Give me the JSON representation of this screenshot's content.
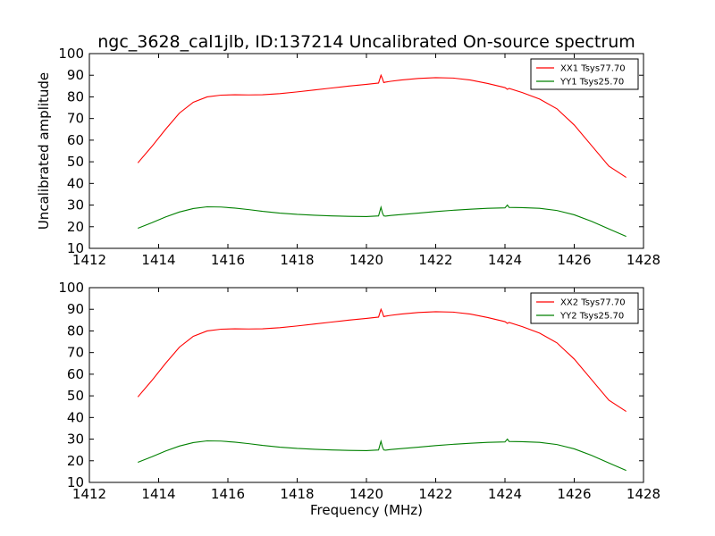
{
  "figure": {
    "title": "ngc_3628_cal1jlb, ID:137214 Uncalibrated On-source spectrum",
    "xlabel": "Frequency (MHz)",
    "ylabel": "Uncalibrated amplitude"
  },
  "colors": {
    "xx": "#ff0000",
    "yy": "#008000"
  },
  "chart_data": [
    {
      "type": "line",
      "xlim": [
        1412,
        1428
      ],
      "ylim": [
        10,
        100
      ],
      "xticks": [
        1412,
        1414,
        1416,
        1418,
        1420,
        1422,
        1424,
        1426,
        1428
      ],
      "yticks": [
        10,
        20,
        30,
        40,
        50,
        60,
        70,
        80,
        90,
        100
      ],
      "ylabel": "Uncalibrated amplitude",
      "xlabel": "",
      "grid": false,
      "legend_position": "top-right",
      "series": [
        {
          "name": "XX1 Tsys77.70",
          "color": "#ff0000",
          "x": [
            1413.4,
            1413.8,
            1414.2,
            1414.6,
            1415.0,
            1415.4,
            1415.8,
            1416.2,
            1416.6,
            1417.0,
            1417.5,
            1418.0,
            1418.5,
            1419.0,
            1419.5,
            1420.0,
            1420.35,
            1420.42,
            1420.46,
            1420.5,
            1420.55,
            1420.7,
            1421.0,
            1421.5,
            1422.0,
            1422.5,
            1423.0,
            1423.5,
            1424.0,
            1424.07,
            1424.12,
            1424.5,
            1425.0,
            1425.5,
            1426.0,
            1426.5,
            1427.0,
            1427.5
          ],
          "values": [
            49.5,
            57.0,
            65.0,
            72.5,
            77.5,
            80.0,
            80.8,
            81.0,
            80.9,
            81.0,
            81.5,
            82.3,
            83.2,
            84.1,
            85.0,
            85.8,
            86.4,
            90.0,
            88.5,
            86.6,
            86.8,
            87.2,
            87.8,
            88.5,
            88.9,
            88.7,
            87.8,
            86.2,
            84.3,
            83.5,
            83.9,
            82.0,
            79.0,
            74.5,
            67.0,
            57.5,
            48.0,
            42.8
          ]
        },
        {
          "name": "YY1 Tsys25.70",
          "color": "#008000",
          "x": [
            1413.4,
            1413.8,
            1414.2,
            1414.6,
            1415.0,
            1415.4,
            1415.8,
            1416.2,
            1416.6,
            1417.0,
            1417.5,
            1418.0,
            1418.5,
            1419.0,
            1419.5,
            1420.0,
            1420.35,
            1420.42,
            1420.46,
            1420.5,
            1420.55,
            1420.7,
            1421.0,
            1421.5,
            1422.0,
            1422.5,
            1423.0,
            1423.5,
            1424.0,
            1424.07,
            1424.12,
            1424.5,
            1425.0,
            1425.5,
            1426.0,
            1426.5,
            1427.0,
            1427.5
          ],
          "values": [
            19.3,
            21.8,
            24.5,
            26.8,
            28.4,
            29.2,
            29.1,
            28.6,
            27.9,
            27.1,
            26.3,
            25.7,
            25.3,
            25.0,
            24.8,
            24.7,
            25.0,
            29.0,
            26.5,
            25.0,
            24.9,
            25.2,
            25.6,
            26.3,
            27.0,
            27.6,
            28.1,
            28.5,
            28.7,
            30.0,
            28.9,
            28.8,
            28.5,
            27.5,
            25.5,
            22.5,
            19.0,
            15.5
          ]
        }
      ]
    },
    {
      "type": "line",
      "xlim": [
        1412,
        1428
      ],
      "ylim": [
        10,
        100
      ],
      "xticks": [
        1412,
        1414,
        1416,
        1418,
        1420,
        1422,
        1424,
        1426,
        1428
      ],
      "yticks": [
        10,
        20,
        30,
        40,
        50,
        60,
        70,
        80,
        90,
        100
      ],
      "ylabel": "",
      "xlabel": "Frequency (MHz)",
      "grid": false,
      "legend_position": "top-right",
      "series": [
        {
          "name": "XX2 Tsys77.70",
          "color": "#ff0000",
          "x": [
            1413.4,
            1413.8,
            1414.2,
            1414.6,
            1415.0,
            1415.4,
            1415.8,
            1416.2,
            1416.6,
            1417.0,
            1417.5,
            1418.0,
            1418.5,
            1419.0,
            1419.5,
            1420.0,
            1420.35,
            1420.42,
            1420.46,
            1420.5,
            1420.55,
            1420.7,
            1421.0,
            1421.5,
            1422.0,
            1422.5,
            1423.0,
            1423.5,
            1424.0,
            1424.07,
            1424.12,
            1424.5,
            1425.0,
            1425.5,
            1426.0,
            1426.5,
            1427.0,
            1427.5
          ],
          "values": [
            49.5,
            57.0,
            65.0,
            72.5,
            77.5,
            80.0,
            80.8,
            81.0,
            80.9,
            81.0,
            81.5,
            82.3,
            83.2,
            84.1,
            85.0,
            85.8,
            86.4,
            90.0,
            88.5,
            86.6,
            86.8,
            87.2,
            87.8,
            88.5,
            88.9,
            88.7,
            87.8,
            86.2,
            84.3,
            83.5,
            83.9,
            82.0,
            79.0,
            74.5,
            67.0,
            57.5,
            48.0,
            42.8
          ]
        },
        {
          "name": "YY2 Tsys25.70",
          "color": "#008000",
          "x": [
            1413.4,
            1413.8,
            1414.2,
            1414.6,
            1415.0,
            1415.4,
            1415.8,
            1416.2,
            1416.6,
            1417.0,
            1417.5,
            1418.0,
            1418.5,
            1419.0,
            1419.5,
            1420.0,
            1420.35,
            1420.42,
            1420.46,
            1420.5,
            1420.55,
            1420.7,
            1421.0,
            1421.5,
            1422.0,
            1422.5,
            1423.0,
            1423.5,
            1424.0,
            1424.07,
            1424.12,
            1424.5,
            1425.0,
            1425.5,
            1426.0,
            1426.5,
            1427.0,
            1427.5
          ],
          "values": [
            19.3,
            21.8,
            24.5,
            26.8,
            28.4,
            29.2,
            29.1,
            28.6,
            27.9,
            27.1,
            26.3,
            25.7,
            25.3,
            25.0,
            24.8,
            24.7,
            25.0,
            29.0,
            26.5,
            25.0,
            24.9,
            25.2,
            25.6,
            26.3,
            27.0,
            27.6,
            28.1,
            28.5,
            28.7,
            30.0,
            28.9,
            28.8,
            28.5,
            27.5,
            25.5,
            22.5,
            19.0,
            15.5
          ]
        }
      ]
    }
  ]
}
